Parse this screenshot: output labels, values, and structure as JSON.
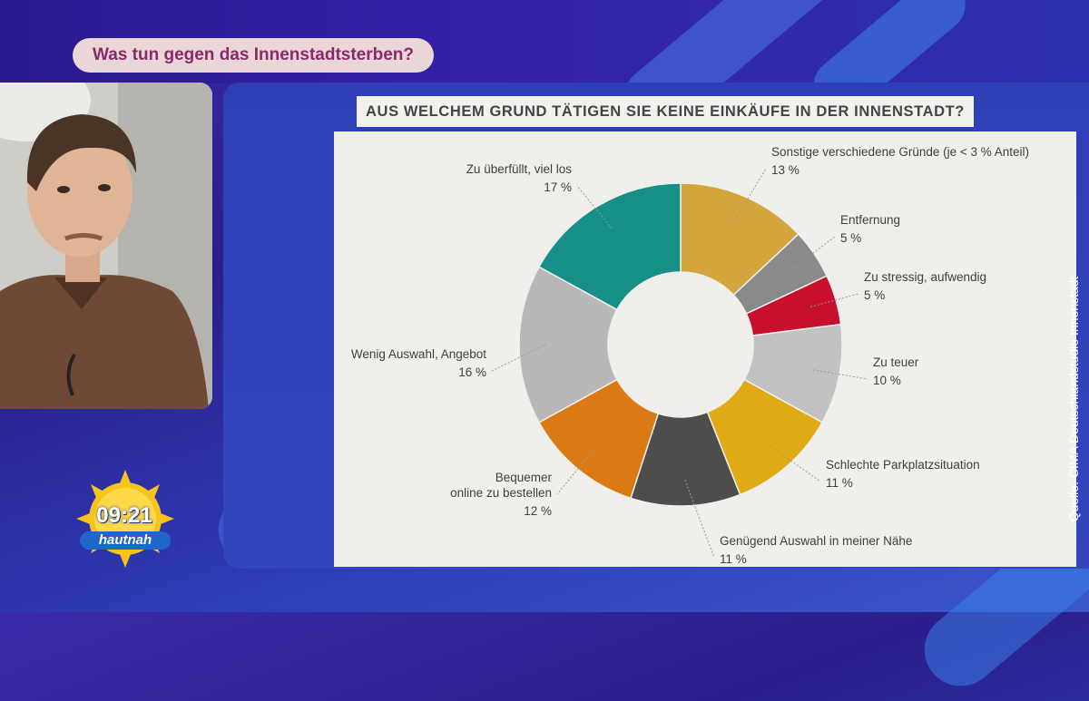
{
  "headline": "Was tun gegen das Innenstadtsterben?",
  "source": "Quelle: CIMA Deutschlandstudie Innenstadt",
  "clock": {
    "time": "09:21",
    "show": "hautnah"
  },
  "colors": {
    "headline_bg": "#ead6d6",
    "headline_text": "#8a2a6a",
    "chart_bg": "#f0efec"
  },
  "chart_data": {
    "type": "pie",
    "donut": true,
    "title": "AUS WELCHEM GRUND TÄTIGEN SIE KEINE EINKÄUFE IN DER INNENSTADT?",
    "slices": [
      {
        "label": "Sonstige verschiedene Gründe (je < 3 % Anteil)",
        "value": 13,
        "value_label": "13 %",
        "color": "#d4a53c"
      },
      {
        "label": "Entfernung",
        "value": 5,
        "value_label": "5 %",
        "color": "#8a8a8a"
      },
      {
        "label": "Zu stressig, aufwendig",
        "value": 5,
        "value_label": "5 %",
        "color": "#c8102e"
      },
      {
        "label": "Zu teuer",
        "value": 10,
        "value_label": "10 %",
        "color": "#c2c2c2"
      },
      {
        "label": "Schlechte Parkplatzsituation",
        "value": 11,
        "value_label": "11 %",
        "color": "#e0aa14"
      },
      {
        "label": "Genügend Auswahl in meiner Nähe",
        "value": 11,
        "value_label": "11 %",
        "color": "#4d4d4d"
      },
      {
        "label": "Bequemer online zu bestellen",
        "label_lines": [
          "Bequemer",
          "online zu bestellen"
        ],
        "value": 12,
        "value_label": "12 %",
        "color": "#d97a15"
      },
      {
        "label": "Wenig Auswahl, Angebot",
        "value": 16,
        "value_label": "16 %",
        "color": "#b8b8b8"
      },
      {
        "label": "Zu überfüllt, viel los",
        "value": 17,
        "value_label": "17 %",
        "color": "#168f86"
      }
    ]
  }
}
